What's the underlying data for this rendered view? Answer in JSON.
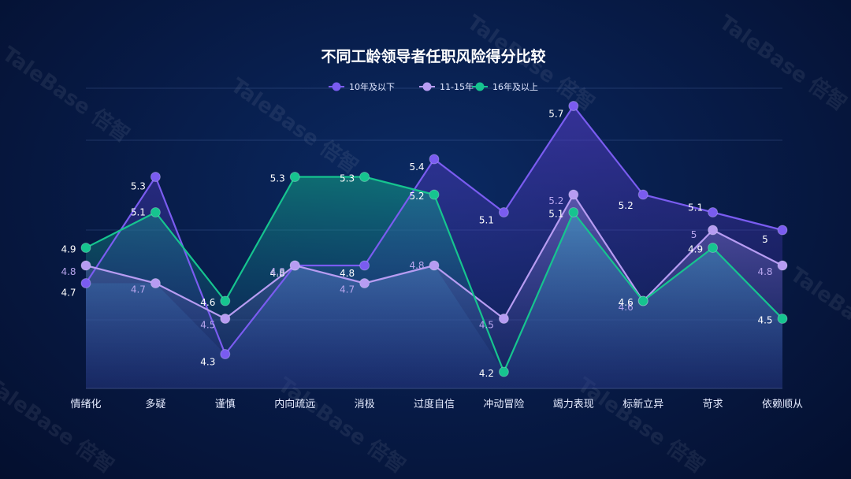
{
  "watermark": "TaleBase 倍智",
  "chart_data": {
    "type": "area",
    "title": "不同工龄领导者任职风险得分比较",
    "legend_position": "top",
    "grid": true,
    "ylim": [
      3.9,
      6.0
    ],
    "categories": [
      "情绪化",
      "多疑",
      "谨慎",
      "内向疏远",
      "消极",
      "过度自信",
      "冲动冒险",
      "竭力表现",
      "标新立异",
      "苛求",
      "依赖顺从"
    ],
    "series": [
      {
        "name": "10年及以下",
        "color": "#7a5cf0",
        "values": [
          4.7,
          5.3,
          4.3,
          4.8,
          4.8,
          5.4,
          5.1,
          5.7,
          5.2,
          5.1,
          5.0
        ]
      },
      {
        "name": "11-15年",
        "color": "#b79cf2",
        "values": [
          4.8,
          4.7,
          4.5,
          4.8,
          4.7,
          4.8,
          4.5,
          5.2,
          4.6,
          5.0,
          4.8
        ]
      },
      {
        "name": "16年及以上",
        "color": "#16c48f",
        "values": [
          4.9,
          5.1,
          4.6,
          5.3,
          5.3,
          5.2,
          4.2,
          5.1,
          4.6,
          4.9,
          4.5
        ]
      }
    ]
  }
}
